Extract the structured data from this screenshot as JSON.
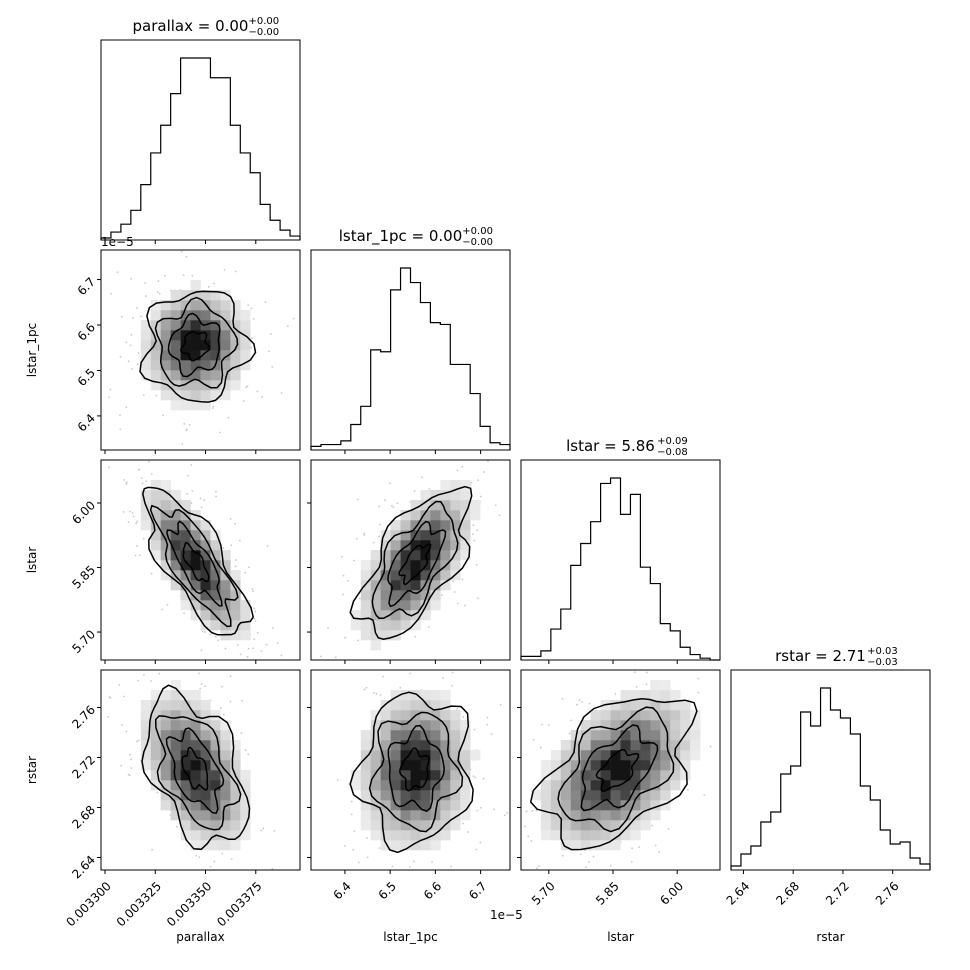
{
  "chart_data": {
    "type": "corner",
    "parameters": [
      {
        "name": "parallax",
        "axis_label": "parallax",
        "title_base": "parallax = 0.00",
        "title_plus": "+0.00",
        "title_minus": "−0.00",
        "range": [
          0.003298,
          0.003397
        ],
        "ticks": [
          0.0033,
          0.003325,
          0.00335,
          0.003375
        ],
        "tick_labels": [
          "0.003300",
          "0.003325",
          "0.003350",
          "0.003375"
        ],
        "offset_label": "",
        "hist": [
          1,
          4,
          8,
          15,
          28,
          44,
          58,
          74,
          92,
          92,
          92,
          82,
          82,
          58,
          44,
          34,
          18,
          10,
          5,
          2
        ],
        "center": 0.003345,
        "sigma": 1.25e-05
      },
      {
        "name": "lstar_1pc",
        "axis_label": "lstar_1pc",
        "title_base": "lstar_1pc = 0.00",
        "title_plus": "+0.00",
        "title_minus": "−0.00",
        "range": [
          6.325e-05,
          6.765e-05
        ],
        "ticks": [
          6.4e-05,
          6.5e-05,
          6.6e-05,
          6.7e-05
        ],
        "tick_labels": [
          "6.4",
          "6.5",
          "6.6",
          "6.7"
        ],
        "offset_label": "1e−5",
        "hist": [
          2,
          3,
          3,
          5,
          14,
          24,
          55,
          54,
          88,
          100,
          92,
          81,
          70,
          69,
          47,
          47,
          31,
          13,
          4,
          3
        ],
        "center": 6.555e-05,
        "sigma": 6e-07
      },
      {
        "name": "lstar",
        "axis_label": "lstar",
        "title_base": "lstar = 5.86",
        "title_plus": "+0.09",
        "title_minus": "−0.08",
        "range": [
          5.635,
          6.1
        ],
        "ticks": [
          5.7,
          5.85,
          6.0
        ],
        "tick_labels": [
          "5.70",
          "5.85",
          "6.00"
        ],
        "offset_label": "",
        "hist": [
          2,
          2,
          5,
          17,
          28,
          52,
          64,
          76,
          97,
          100,
          80,
          91,
          51,
          42,
          20,
          16,
          7,
          3,
          1,
          0
        ],
        "center": 5.86,
        "sigma": 0.085
      },
      {
        "name": "rstar",
        "axis_label": "rstar",
        "title_base": "rstar = 2.71",
        "title_plus": "+0.03",
        "title_minus": "−0.03",
        "range": [
          2.63,
          2.79
        ],
        "ticks": [
          2.64,
          2.68,
          2.72,
          2.76
        ],
        "tick_labels": [
          "2.64",
          "2.68",
          "2.72",
          "2.76"
        ],
        "offset_label": "",
        "hist": [
          2,
          8,
          12,
          24,
          29,
          48,
          52,
          79,
          72,
          91,
          80,
          76,
          68,
          42,
          35,
          20,
          13,
          14,
          6,
          3
        ],
        "center": 2.71,
        "sigma": 0.03
      }
    ],
    "correlations": {
      "1-0": 0.05,
      "2-0": -0.75,
      "2-1": 0.62,
      "3-0": -0.45,
      "3-1": 0.05,
      "3-2": 0.45
    }
  }
}
